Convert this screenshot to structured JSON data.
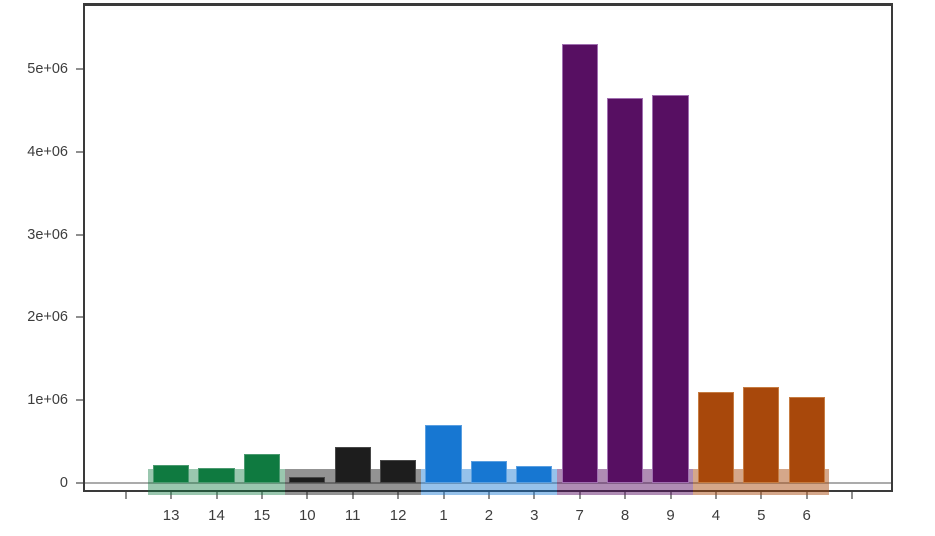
{
  "chart_data": {
    "type": "bar",
    "title": "",
    "xlabel": "",
    "ylabel": "",
    "grid": "off",
    "legend": "none",
    "background_color": "#ffffff",
    "axis": {
      "frame_color": "#3a3a3a",
      "tick_color": "#8f8f8f",
      "label_color": "#3d3d3d",
      "zero_line_color": "#ababab",
      "y_tick_labels": [
        "0",
        "1e+06",
        "2e+06",
        "3e+06",
        "4e+06",
        "5e+06"
      ],
      "y_tick_values": [
        0,
        1000000,
        2000000,
        3000000,
        4000000,
        5000000
      ],
      "ylim": [
        -110000,
        5900000
      ],
      "x_edge_ticks_unlabeled": 2
    },
    "categories": [
      "13",
      "14",
      "15",
      "10",
      "11",
      "12",
      "1",
      "2",
      "3",
      "7",
      "8",
      "9",
      "4",
      "5",
      "6"
    ],
    "values": [
      220000,
      180000,
      350000,
      70000,
      430000,
      280000,
      700000,
      260000,
      210000,
      5300000,
      4650000,
      4690000,
      1100000,
      1160000,
      1040000
    ],
    "groups": [
      {
        "name": "green-group",
        "bar_color": "#0f7a40",
        "bar_border": "#4b9a70",
        "band_rgba": "rgba(15,122,64,0.42)",
        "bars": [
          {
            "label": "13",
            "value": 220000
          },
          {
            "label": "14",
            "value": 180000
          },
          {
            "label": "15",
            "value": 350000
          }
        ]
      },
      {
        "name": "black-group",
        "bar_color": "#1d1d1d",
        "bar_border": "#484848",
        "band_rgba": "rgba(29,29,29,0.48)",
        "bars": [
          {
            "label": "10",
            "value": 70000
          },
          {
            "label": "11",
            "value": 430000
          },
          {
            "label": "12",
            "value": 280000
          }
        ]
      },
      {
        "name": "blue-group",
        "bar_color": "#1777d2",
        "bar_border": "#5a9fe0",
        "band_rgba": "rgba(23,119,210,0.45)",
        "bars": [
          {
            "label": "1",
            "value": 700000
          },
          {
            "label": "2",
            "value": 260000
          },
          {
            "label": "3",
            "value": 210000
          }
        ]
      },
      {
        "name": "purple-group",
        "bar_color": "#570f62",
        "bar_border": "#a06fb0",
        "band_rgba": "rgba(87,15,98,0.48)",
        "bars": [
          {
            "label": "7",
            "value": 5300000
          },
          {
            "label": "8",
            "value": 4650000
          },
          {
            "label": "9",
            "value": 4690000
          }
        ]
      },
      {
        "name": "orange-group",
        "bar_color": "#a8480b",
        "bar_border": "#c67c42",
        "band_rgba": "rgba(168,72,11,0.48)",
        "bars": [
          {
            "label": "4",
            "value": 1100000
          },
          {
            "label": "5",
            "value": 1160000
          },
          {
            "label": "6",
            "value": 1040000
          }
        ]
      }
    ]
  }
}
